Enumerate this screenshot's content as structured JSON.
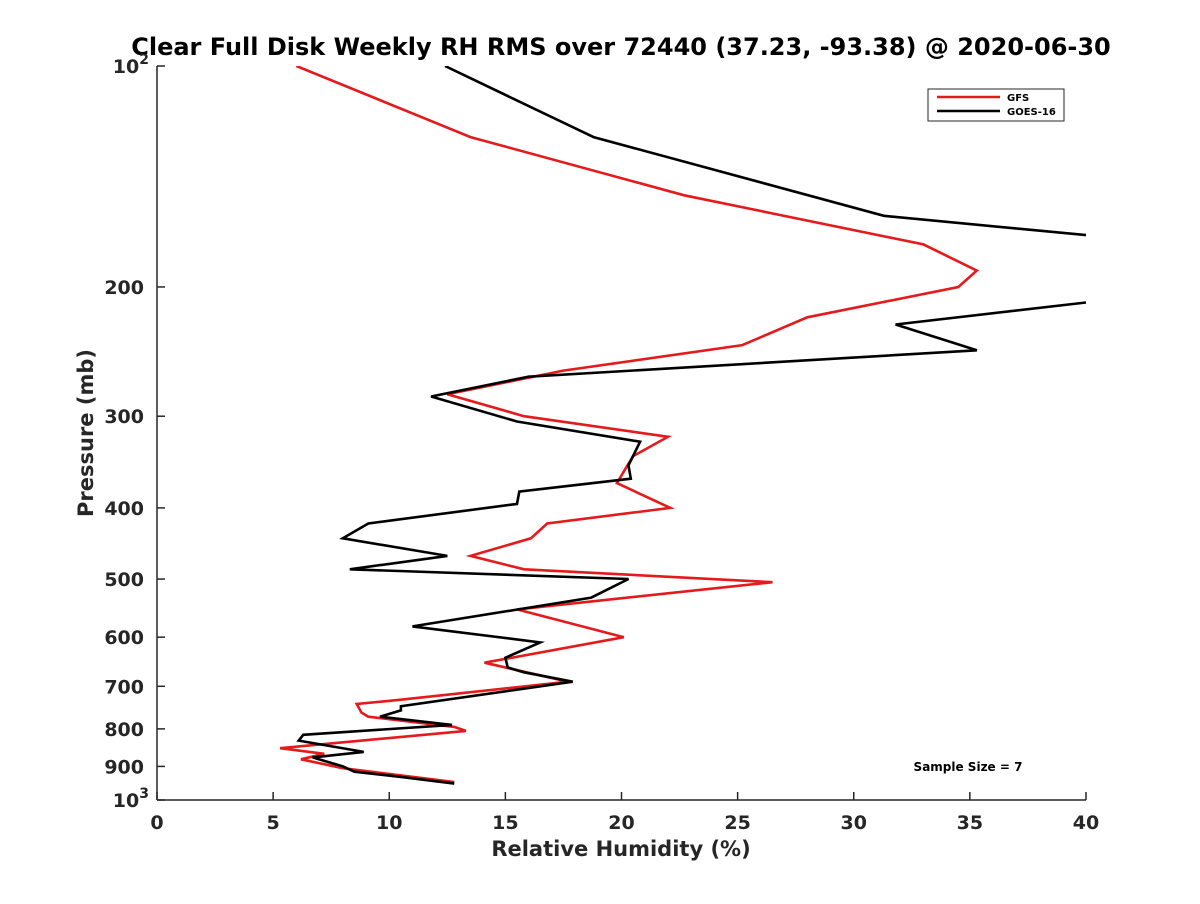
{
  "chart_data": {
    "type": "line",
    "title": "Clear Full Disk Weekly RH RMS over 72440 (37.23, -93.38) @ 2020-06-30",
    "xlabel": "Relative Humidity (%)",
    "ylabel": "Pressure (mb)",
    "xlim": [
      0,
      40
    ],
    "ylim": [
      100,
      1000
    ],
    "yscale": "log",
    "y_reversed": true,
    "x_ticks": [
      "0",
      "5",
      "10",
      "15",
      "20",
      "25",
      "30",
      "35",
      "40"
    ],
    "y_ticks": [
      {
        "value": 100,
        "label": "10",
        "sup": "2"
      },
      {
        "value": 200,
        "label": "200"
      },
      {
        "value": 300,
        "label": "300"
      },
      {
        "value": 400,
        "label": "400"
      },
      {
        "value": 500,
        "label": "500"
      },
      {
        "value": 600,
        "label": "600"
      },
      {
        "value": 700,
        "label": "700"
      },
      {
        "value": 800,
        "label": "800"
      },
      {
        "value": 900,
        "label": "900"
      },
      {
        "value": 1000,
        "label": "10",
        "sup": "3"
      }
    ],
    "grid": false,
    "legend_position": "top-right",
    "annotation": "Sample Size = 7",
    "series": [
      {
        "name": "GFS",
        "color": "#e41a1c",
        "points": [
          [
            6.0,
            100
          ],
          [
            13.5,
            125
          ],
          [
            22.7,
            150
          ],
          [
            33.0,
            175
          ],
          [
            35.3,
            190
          ],
          [
            34.5,
            200
          ],
          [
            28.0,
            220
          ],
          [
            25.2,
            240
          ],
          [
            17.5,
            260
          ],
          [
            12.5,
            280
          ],
          [
            15.8,
            300
          ],
          [
            22.0,
            320
          ],
          [
            20.5,
            340
          ],
          [
            19.8,
            370
          ],
          [
            22.1,
            400
          ],
          [
            16.8,
            420
          ],
          [
            16.1,
            440
          ],
          [
            13.5,
            465
          ],
          [
            15.8,
            485
          ],
          [
            26.5,
            505
          ],
          [
            15.5,
            550
          ],
          [
            20.1,
            600
          ],
          [
            14.1,
            650
          ],
          [
            17.7,
            690
          ],
          [
            10.5,
            730
          ],
          [
            8.6,
            740
          ],
          [
            8.8,
            760
          ],
          [
            9.1,
            770
          ],
          [
            12.8,
            795
          ],
          [
            13.3,
            805
          ],
          [
            5.3,
            850
          ],
          [
            7.2,
            865
          ],
          [
            6.2,
            880
          ],
          [
            8.0,
            905
          ],
          [
            12.8,
            945
          ]
        ]
      },
      {
        "name": "GOES-16",
        "color": "#000000",
        "points": [
          [
            12.4,
            100
          ],
          [
            18.8,
            125
          ],
          [
            31.3,
            160
          ],
          [
            40.0,
            170
          ],
          [
            null,
            175
          ],
          [
            40.0,
            210
          ],
          [
            31.8,
            225
          ],
          [
            35.3,
            244
          ],
          [
            16.0,
            265
          ],
          [
            11.8,
            282
          ],
          [
            15.5,
            305
          ],
          [
            20.8,
            325
          ],
          [
            20.3,
            350
          ],
          [
            20.4,
            365
          ],
          [
            15.6,
            380
          ],
          [
            15.5,
            395
          ],
          [
            9.1,
            420
          ],
          [
            8.0,
            440
          ],
          [
            12.5,
            465
          ],
          [
            8.3,
            485
          ],
          [
            20.3,
            500
          ],
          [
            18.7,
            530
          ],
          [
            11.0,
            580
          ],
          [
            16.5,
            610
          ],
          [
            15.0,
            640
          ],
          [
            15.1,
            660
          ],
          [
            15.8,
            670
          ],
          [
            17.9,
            690
          ],
          [
            10.5,
            745
          ],
          [
            10.5,
            755
          ],
          [
            9.6,
            770
          ],
          [
            12.7,
            790
          ],
          [
            6.3,
            815
          ],
          [
            6.1,
            830
          ],
          [
            8.9,
            860
          ],
          [
            6.7,
            875
          ],
          [
            8.0,
            900
          ],
          [
            8.5,
            915
          ],
          [
            10.5,
            930
          ],
          [
            12.8,
            950
          ]
        ]
      }
    ]
  }
}
